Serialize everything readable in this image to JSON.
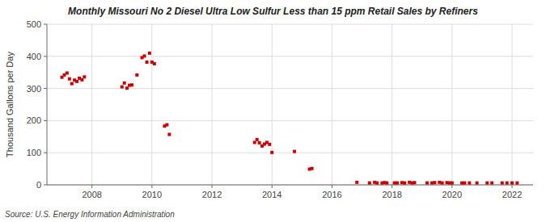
{
  "chart_data": {
    "type": "scatter",
    "title": "Monthly Missouri No 2 Diesel Ultra Low Sulfur Less than 15 ppm Retail Sales by Refiners",
    "ylabel": "Thousand Gallons per Day",
    "annotations": [
      "Source: U.S. Energy Information Administration"
    ],
    "color": "#cc0000",
    "marker": "square",
    "grid": true,
    "xlim": [
      2006.5,
      2022.7
    ],
    "ylim": [
      0,
      500
    ],
    "xticks": [
      2008,
      2010,
      2012,
      2014,
      2016,
      2018,
      2020,
      2022
    ],
    "yticks": [
      0,
      100,
      200,
      300,
      400,
      500
    ],
    "x": [
      2007.0,
      2007.08,
      2007.17,
      2007.25,
      2007.33,
      2007.42,
      2007.5,
      2007.58,
      2007.67,
      2007.75,
      2009.0,
      2009.08,
      2009.17,
      2009.25,
      2009.33,
      2009.5,
      2009.67,
      2009.75,
      2009.83,
      2009.92,
      2010.0,
      2010.08,
      2010.42,
      2010.5,
      2010.58,
      2013.42,
      2013.5,
      2013.58,
      2013.67,
      2013.75,
      2013.83,
      2013.92,
      2014.0,
      2014.75,
      2015.25,
      2015.33,
      2016.83,
      2017.25,
      2017.42,
      2017.5,
      2017.67,
      2017.75,
      2017.83,
      2018.08,
      2018.17,
      2018.33,
      2018.42,
      2018.58,
      2018.67,
      2018.75,
      2019.17,
      2019.33,
      2019.42,
      2019.58,
      2019.67,
      2019.83,
      2019.92,
      2020.0,
      2020.33,
      2020.42,
      2020.58,
      2020.83,
      2021.17,
      2021.33,
      2021.67,
      2021.83,
      2022.0,
      2022.17
    ],
    "values": [
      335,
      342,
      348,
      330,
      315,
      326,
      322,
      332,
      327,
      336,
      305,
      317,
      301,
      310,
      311,
      342,
      396,
      401,
      382,
      410,
      382,
      377,
      183,
      187,
      157,
      132,
      141,
      131,
      121,
      127,
      132,
      126,
      101,
      104,
      49,
      51,
      8,
      6,
      8,
      6,
      6,
      7,
      6,
      6,
      6,
      7,
      6,
      8,
      6,
      7,
      6,
      6,
      7,
      8,
      6,
      7,
      6,
      6,
      6,
      6,
      6,
      6,
      6,
      6,
      6,
      6,
      6,
      6
    ]
  }
}
